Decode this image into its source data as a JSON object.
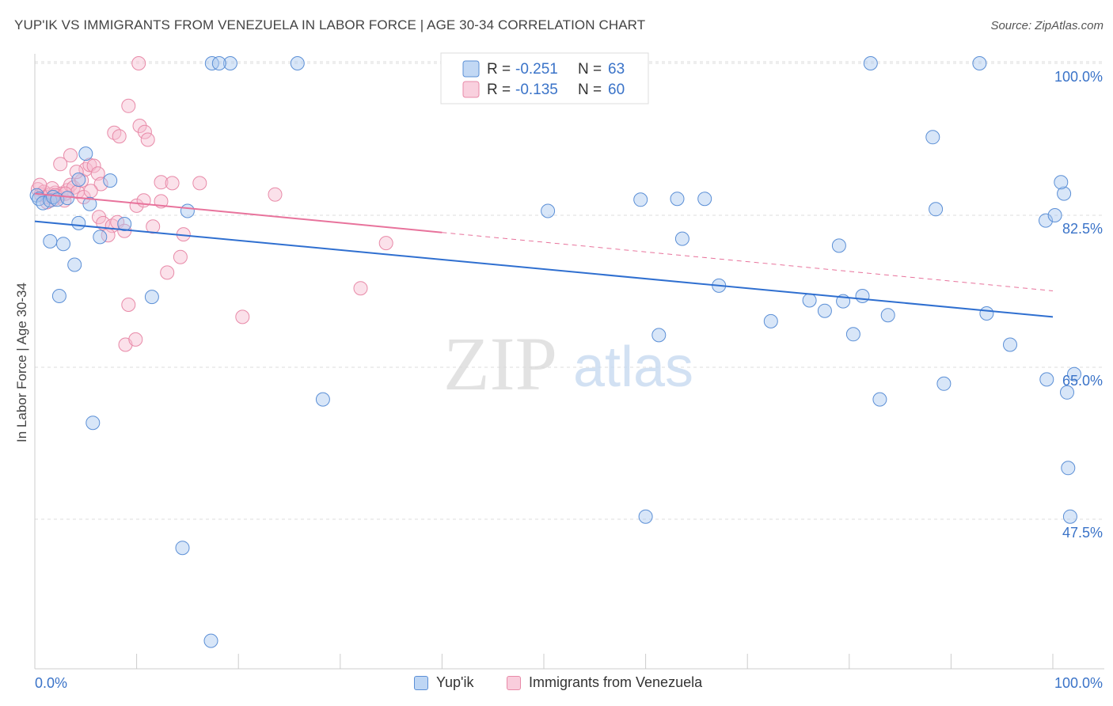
{
  "title": "YUP'IK VS IMMIGRANTS FROM VENEZUELA IN LABOR FORCE | AGE 30-34 CORRELATION CHART",
  "source": "Source: ZipAtlas.com",
  "watermark": {
    "zip": "ZIP",
    "atlas": "atlas"
  },
  "legend_box": [
    {
      "r_label": "R = ",
      "r_value": "-0.251",
      "n_label": "N = ",
      "n_value": "63"
    },
    {
      "r_label": "R = ",
      "r_value": "-0.135",
      "n_label": "N = ",
      "n_value": "60"
    }
  ],
  "legend_bottom": [
    "Yup'ik",
    "Immigrants from Venezuela"
  ],
  "colors": {
    "blue_fill": "#a8c8f0",
    "blue_stroke": "#5b8fd6",
    "blue_line": "#2f6fd0",
    "pink_fill": "#f7bcd0",
    "pink_stroke": "#e88aa8",
    "pink_line": "#e8739c",
    "value_text": "#3a73c8",
    "grid": "#dddddd"
  },
  "chart_data": {
    "type": "scatter",
    "title": "YUP'IK VS IMMIGRANTS FROM VENEZUELA IN LABOR FORCE | AGE 30-34 CORRELATION CHART",
    "xlabel": "",
    "ylabel": "In Labor Force | Age 30-34",
    "xlim": [
      0,
      100
    ],
    "ylim": [
      28,
      101
    ],
    "x_tick_labels": [
      "0.0%",
      "100.0%"
    ],
    "y_ticks": [
      47.5,
      65.0,
      82.5,
      100.0
    ],
    "y_tick_labels": [
      "47.5%",
      "65.0%",
      "82.5%",
      "100.0%"
    ],
    "grid": true,
    "legend": "top-center",
    "series": [
      {
        "name": "Yup'ik",
        "r": -0.251,
        "n": 63,
        "trend": {
          "x": [
            0,
            100
          ],
          "y": [
            81.8,
            70.8
          ],
          "dashed_from": null
        },
        "points": [
          [
            0.2,
            84.8
          ],
          [
            0.4,
            84.4
          ],
          [
            0.8,
            83.9
          ],
          [
            1.5,
            84.2
          ],
          [
            1.8,
            84.6
          ],
          [
            2.2,
            84.3
          ],
          [
            3.2,
            84.5
          ],
          [
            5.4,
            83.8
          ],
          [
            5.0,
            89.6
          ],
          [
            4.3,
            86.6
          ],
          [
            7.4,
            86.5
          ],
          [
            1.5,
            79.5
          ],
          [
            2.8,
            79.2
          ],
          [
            4.3,
            81.6
          ],
          [
            8.8,
            81.5
          ],
          [
            6.4,
            80.0
          ],
          [
            3.9,
            76.8
          ],
          [
            15.0,
            83.0
          ],
          [
            2.4,
            73.2
          ],
          [
            11.5,
            73.1
          ],
          [
            5.7,
            58.6
          ],
          [
            14.5,
            44.2
          ],
          [
            19.2,
            100.0
          ],
          [
            17.4,
            100.0
          ],
          [
            18.1,
            100.0
          ],
          [
            25.8,
            100.0
          ],
          [
            45.3,
            100.0
          ],
          [
            58.2,
            100.0
          ],
          [
            82.1,
            100.0
          ],
          [
            92.8,
            100.0
          ],
          [
            17.3,
            33.5
          ],
          [
            28.3,
            61.3
          ],
          [
            50.4,
            83.0
          ],
          [
            60.0,
            47.8
          ],
          [
            61.3,
            68.7
          ],
          [
            63.6,
            79.8
          ],
          [
            59.5,
            84.3
          ],
          [
            63.1,
            84.4
          ],
          [
            65.8,
            84.4
          ],
          [
            67.2,
            74.4
          ],
          [
            72.3,
            70.3
          ],
          [
            76.1,
            72.7
          ],
          [
            77.6,
            71.5
          ],
          [
            79.4,
            72.6
          ],
          [
            80.4,
            68.8
          ],
          [
            79.0,
            79.0
          ],
          [
            81.3,
            73.2
          ],
          [
            83.0,
            61.3
          ],
          [
            83.8,
            71.0
          ],
          [
            89.3,
            63.1
          ],
          [
            88.2,
            91.5
          ],
          [
            88.5,
            83.2
          ],
          [
            93.5,
            71.2
          ],
          [
            95.8,
            67.6
          ],
          [
            99.4,
            63.6
          ],
          [
            101.4,
            62.1
          ],
          [
            99.3,
            81.9
          ],
          [
            100.2,
            82.5
          ],
          [
            101.1,
            85.0
          ],
          [
            102.1,
            64.2
          ],
          [
            100.8,
            86.3
          ],
          [
            101.5,
            53.4
          ],
          [
            101.7,
            47.8
          ]
        ]
      },
      {
        "name": "Immigrants from Venezuela",
        "r": -0.135,
        "n": 60,
        "trend": {
          "x": [
            0,
            100
          ],
          "y": [
            85.0,
            73.8
          ],
          "dashed_from": 40
        },
        "points": [
          [
            0.3,
            85.5
          ],
          [
            0.6,
            84.9
          ],
          [
            0.9,
            85.2
          ],
          [
            1.2,
            84.6
          ],
          [
            1.5,
            84.9
          ],
          [
            1.8,
            84.3
          ],
          [
            2.0,
            85.1
          ],
          [
            2.3,
            84.7
          ],
          [
            2.6,
            85.0
          ],
          [
            2.9,
            84.2
          ],
          [
            3.2,
            85.4
          ],
          [
            3.5,
            86.0
          ],
          [
            3.8,
            85.7
          ],
          [
            4.2,
            85.2
          ],
          [
            4.6,
            86.5
          ],
          [
            5.0,
            87.8
          ],
          [
            5.4,
            88.3
          ],
          [
            5.8,
            88.2
          ],
          [
            6.2,
            87.3
          ],
          [
            6.5,
            86.1
          ],
          [
            2.5,
            88.4
          ],
          [
            4.1,
            87.5
          ],
          [
            3.5,
            89.4
          ],
          [
            1.7,
            85.6
          ],
          [
            0.5,
            86.0
          ],
          [
            1.2,
            84.0
          ],
          [
            2.0,
            84.8
          ],
          [
            3.0,
            85.0
          ],
          [
            4.8,
            84.6
          ],
          [
            5.5,
            85.3
          ],
          [
            6.3,
            82.3
          ],
          [
            6.7,
            81.6
          ],
          [
            7.6,
            81.3
          ],
          [
            7.2,
            80.2
          ],
          [
            8.1,
            81.7
          ],
          [
            8.8,
            80.7
          ],
          [
            10.0,
            83.6
          ],
          [
            10.7,
            84.2
          ],
          [
            12.4,
            86.3
          ],
          [
            13.5,
            86.2
          ],
          [
            12.4,
            84.1
          ],
          [
            11.6,
            81.2
          ],
          [
            13.0,
            75.9
          ],
          [
            14.3,
            77.7
          ],
          [
            14.6,
            80.3
          ],
          [
            16.2,
            86.2
          ],
          [
            20.4,
            70.8
          ],
          [
            23.6,
            84.9
          ],
          [
            32.0,
            74.1
          ],
          [
            34.5,
            79.3
          ],
          [
            7.8,
            92.0
          ],
          [
            8.3,
            91.6
          ],
          [
            9.2,
            95.1
          ],
          [
            10.3,
            92.8
          ],
          [
            10.8,
            92.1
          ],
          [
            11.1,
            91.2
          ],
          [
            9.2,
            72.2
          ],
          [
            8.9,
            67.6
          ],
          [
            9.9,
            68.2
          ],
          [
            10.2,
            100.0
          ]
        ]
      }
    ]
  }
}
